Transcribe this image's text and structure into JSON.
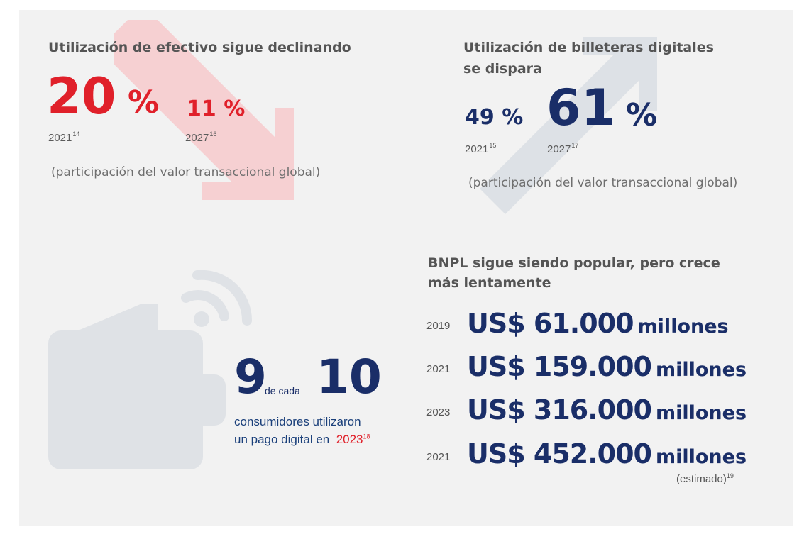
{
  "cash": {
    "title": "Utilización de efectivo sigue declinando",
    "value_2021": "20",
    "value_2021_pct": "%",
    "year_2021": "2021",
    "year_2021_ref": "14",
    "value_2027": "11 %",
    "year_2027": "2027",
    "year_2027_ref": "16",
    "note": "(participación del valor transaccional global)"
  },
  "wallets": {
    "title_line1": "Utilización de billeteras digitales",
    "title_line2": "se dispara",
    "value_2021": "49 %",
    "year_2021": "2021",
    "year_2021_ref": "15",
    "value_2027": "61",
    "value_2027_pct": "%",
    "year_2027": "2027",
    "year_2027_ref": "17",
    "note": "(participación del valor transaccional global)"
  },
  "consumers": {
    "num": "9",
    "of": "de cada",
    "den": "10",
    "line1": "consumidores utilizaron",
    "line2": "un pago digital en",
    "year": "2023",
    "year_ref": "18"
  },
  "bnpl": {
    "title_line1": "BNPL sigue siendo popular, pero crece",
    "title_line2": "más lentamente",
    "rows": [
      {
        "year": "2019",
        "amount": "US$ 61.000",
        "unit": "millones"
      },
      {
        "year": "2021",
        "amount": "US$ 159.000",
        "unit": "millones"
      },
      {
        "year": "2023",
        "amount": "US$ 316.000",
        "unit": "millones"
      },
      {
        "year": "2021",
        "amount": "US$ 452.000",
        "unit": "millones"
      }
    ],
    "estimate_note": "(estimado)",
    "estimate_ref": "19"
  },
  "colors": {
    "panel": "#f2f2f2",
    "red": "#e0202a",
    "navy": "#1a2e68",
    "red_arrow": "#f6d0d2",
    "grey_arrow": "#dde1e6"
  }
}
